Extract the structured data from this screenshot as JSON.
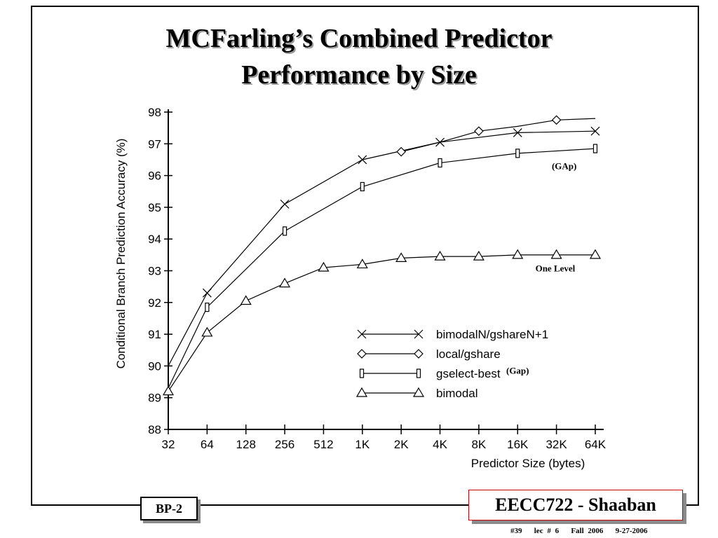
{
  "slide": {
    "title_line1": "MCFarling’s Combined Predictor",
    "title_line2": "Performance by Size",
    "slide_tag": "BP-2",
    "course": "EECC722 - Shaaban",
    "footer_info": "#39   lec # 6   Fall 2006   9-27-2006"
  },
  "chart_data": {
    "type": "line",
    "title": "",
    "xlabel": "Predictor Size (bytes)",
    "ylabel": "Conditional Branch Prediction Accuracy (%)",
    "categories": [
      "32",
      "64",
      "128",
      "256",
      "512",
      "1K",
      "2K",
      "4K",
      "8K",
      "16K",
      "32K",
      "64K"
    ],
    "ylim": [
      88,
      98
    ],
    "yticks": [
      88,
      89,
      90,
      91,
      92,
      93,
      94,
      95,
      96,
      97,
      98
    ],
    "grid": false,
    "legend_position": "bottom-right",
    "series": [
      {
        "name": "bimodalN/gshareN+1",
        "marker": "x",
        "line_x": [
          0,
          1,
          3,
          5,
          7,
          9,
          11
        ],
        "line_y": [
          90.0,
          92.3,
          95.1,
          96.5,
          97.05,
          97.35,
          97.4
        ],
        "marker_x": [
          1,
          3,
          5,
          7,
          9,
          11
        ],
        "marker_y": [
          92.3,
          95.1,
          96.5,
          97.05,
          97.35,
          97.4
        ]
      },
      {
        "name": "local/gshare",
        "marker": "diamond",
        "line_x": [
          6,
          7,
          8,
          9,
          10,
          11
        ],
        "line_y": [
          96.75,
          97.05,
          97.4,
          97.55,
          97.75,
          97.8
        ],
        "marker_x": [
          6,
          8,
          10
        ],
        "marker_y": [
          96.75,
          97.4,
          97.75
        ]
      },
      {
        "name": "gselect-best",
        "marker": "rect",
        "line_x": [
          0,
          1,
          3,
          5,
          7,
          9,
          11
        ],
        "line_y": [
          89.3,
          91.85,
          94.25,
          95.65,
          96.4,
          96.7,
          96.85
        ],
        "marker_x": [
          1,
          3,
          5,
          7,
          9,
          11
        ],
        "marker_y": [
          91.85,
          94.25,
          95.65,
          96.4,
          96.7,
          96.85
        ]
      },
      {
        "name": "bimodal",
        "marker": "triangle",
        "line_x": [
          0,
          1,
          2,
          3,
          4,
          5,
          6,
          7,
          8,
          9,
          10,
          11
        ],
        "line_y": [
          89.2,
          91.05,
          92.05,
          92.6,
          93.1,
          93.2,
          93.4,
          93.45,
          93.45,
          93.5,
          93.5,
          93.5
        ],
        "marker_x": [
          0,
          1,
          2,
          3,
          4,
          5,
          6,
          7,
          8,
          9,
          10,
          11
        ],
        "marker_y": [
          89.2,
          91.05,
          92.05,
          92.6,
          93.1,
          93.2,
          93.4,
          93.45,
          93.45,
          93.5,
          93.5,
          93.5
        ]
      }
    ],
    "annotations": [
      {
        "text": "(GAp)",
        "x": 10.2,
        "y": 96.2
      },
      {
        "text": "One Level",
        "x": 9.97,
        "y": 92.98
      },
      {
        "text": "(Gap)",
        "x": 9.0,
        "y": 89.75
      }
    ]
  }
}
